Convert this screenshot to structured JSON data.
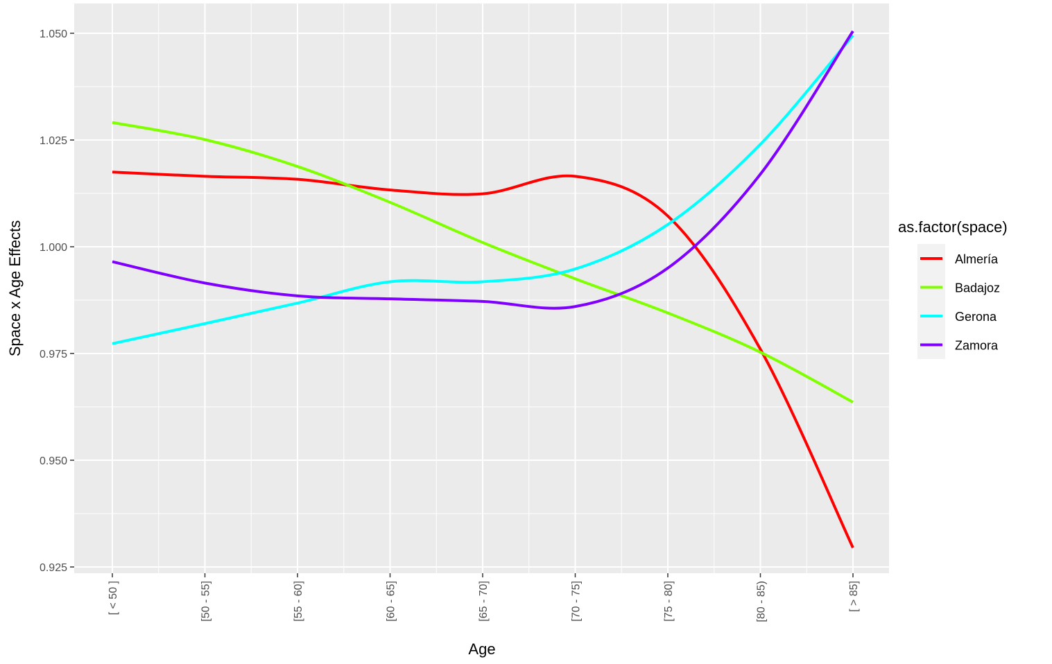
{
  "chart_data": {
    "type": "line",
    "categories": [
      "[ < 50 ]",
      "[50 - 55]",
      "[55 - 60]",
      "[60 - 65]",
      "[65 - 70]",
      "[70 - 75]",
      "[75 - 80]",
      "[80 - 85)",
      "[ > 85]"
    ],
    "xlabel": "Age",
    "ylabel": "Space x Age Effects",
    "ylim": [
      0.925,
      1.05
    ],
    "yticks": [
      "0.925",
      "0.950",
      "0.975",
      "1.000",
      "1.025",
      "1.050"
    ],
    "grid": true,
    "legend": {
      "title": "as.factor(space)",
      "position": "right"
    },
    "series": [
      {
        "name": "Almería",
        "color": "#ff0000",
        "values": [
          1.0175,
          1.0165,
          1.0158,
          1.0133,
          1.0124,
          1.0165,
          1.0072,
          0.976,
          0.9295
        ]
      },
      {
        "name": "Badajoz",
        "color": "#80ff00",
        "values": [
          1.0291,
          1.0251,
          1.0188,
          1.0104,
          1.001,
          0.9925,
          0.9845,
          0.9753,
          0.9636
        ]
      },
      {
        "name": "Gerona",
        "color": "#00ffff",
        "values": [
          0.9773,
          0.982,
          0.9868,
          0.9918,
          0.9918,
          0.9948,
          1.0052,
          1.024,
          1.0495
        ]
      },
      {
        "name": "Zamora",
        "color": "#8000ff",
        "values": [
          0.9965,
          0.9915,
          0.9885,
          0.9878,
          0.9872,
          0.986,
          0.995,
          1.017,
          1.0505
        ]
      }
    ]
  }
}
